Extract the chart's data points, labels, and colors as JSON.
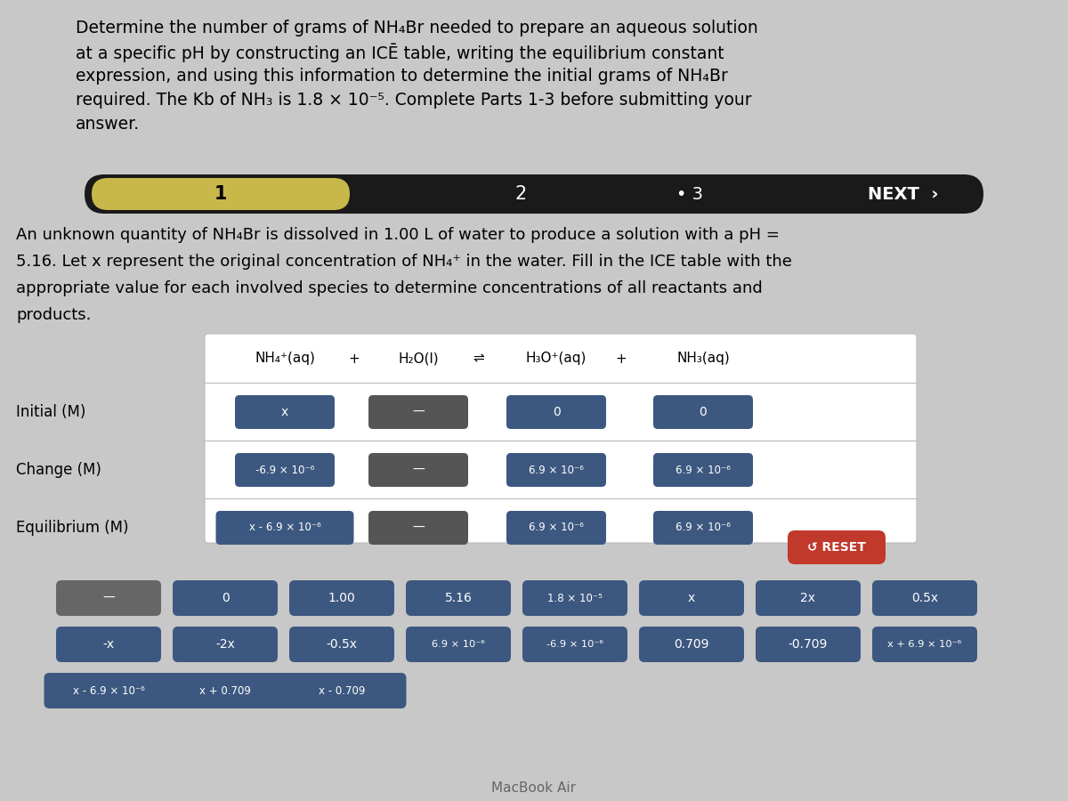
{
  "bg_color": "#c8c8c8",
  "white_bg": "#ffffff",
  "nav_bar_color": "#1a1a1a",
  "nav_active_color": "#c8b84a",
  "cell_color_blue": "#3d5880",
  "cell_color_dark": "#555555",
  "cell_color_red": "#c0392b",
  "gray_btn_color": "#666666",
  "title_lines": [
    "Determine the number of grams of NH₄Br needed to prepare an aqueous solution",
    "at a specific pH by constructing an ICĒ table, writing the equilibrium constant",
    "expression, and using this information to determine the initial grams of NH₄Br",
    "required. The Kb of NH₃ is 1.8 × 10⁻⁵. Complete Parts 1-3 before submitting your",
    "answer."
  ],
  "para_lines": [
    "An unknown quantity of NH₄Br is dissolved in 1.00 L of water to produce a solution with a pH =",
    "5.16. Let x represent the original concentration of NH₄⁺ in the water. Fill in the ICE table with the",
    "appropriate value for each involved species to determine concentrations of all reactants and",
    "products."
  ],
  "col_headers": [
    "NH₄⁺(aq)",
    "+",
    "H₂O(l)",
    "⇌",
    "H₃O⁺(aq)",
    "+",
    "NH₃(aq)"
  ],
  "row_labels": [
    "Initial (M)",
    "Change (M)",
    "Equilibrium (M)"
  ],
  "ice_data": [
    [
      "x",
      "—",
      "0",
      "0"
    ],
    [
      "-6.9 × 10⁻⁶",
      "—",
      "6.9 × 10⁻⁶",
      "6.9 × 10⁻⁶"
    ],
    [
      "x - 6.9 × 10⁻⁶",
      "—",
      "6.9 × 10⁻⁶",
      "6.9 × 10⁻⁶"
    ]
  ],
  "btn_row1": [
    "—",
    "0",
    "1.00",
    "5.16",
    "1.8 × 10⁻⁵",
    "x",
    "2x",
    "0.5x"
  ],
  "btn_row2": [
    "-x",
    "-2x",
    "-0.5x",
    "6.9 × 10⁻⁶",
    "-6.9 × 10⁻⁶",
    "0.709",
    "-0.709",
    "x + 6.9 × 10⁻⁶"
  ],
  "btn_row3": [
    "x - 6.9 × 10⁻⁶",
    "x + 0.709",
    "x - 0.709"
  ]
}
